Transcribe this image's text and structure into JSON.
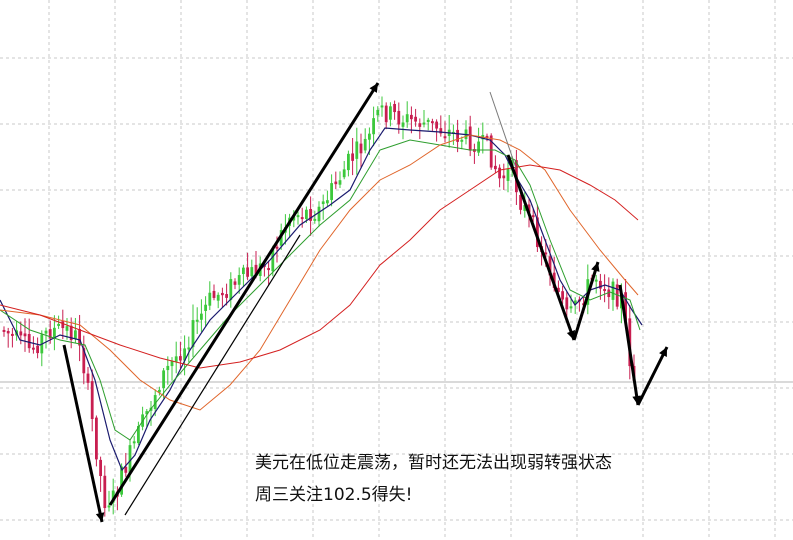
{
  "annotation": {
    "line1": "美元在低位走震荡，暂时还无法出现弱转强状态",
    "line2": "周三关注102.5得失!"
  },
  "colors": {
    "up_candle": "#3cc83c",
    "down_candle": "#c81e50",
    "ma_fast": "#1a1a6e",
    "ma_mid": "#2e9e2e",
    "ma_slow": "#e0652a",
    "ma_long": "#d42020",
    "arrow": "#000000",
    "trend_line": "#000000"
  },
  "chart_data": {
    "type": "candlestick",
    "title": "",
    "xlabel": "",
    "ylabel": "",
    "grid": true,
    "annotation_levels": [
      102.5
    ]
  }
}
